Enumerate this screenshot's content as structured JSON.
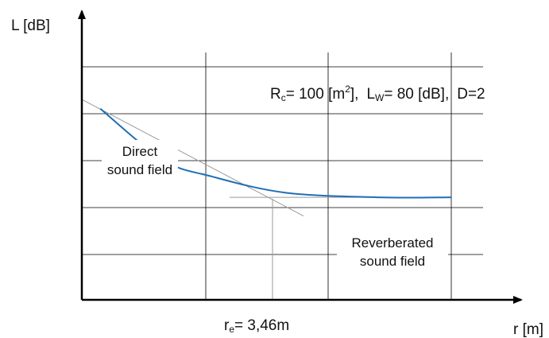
{
  "chart_data": {
    "type": "line",
    "title": "",
    "ylabel": "L [dB]",
    "xlabel": "r [m]",
    "parameters": {
      "R_symbol": "R",
      "R_sub": "c",
      "R_value": "= 100 [m",
      "R_sup": "2",
      "R_close": "],",
      "L_symbol": "L",
      "L_sub": "W",
      "L_value": "= 80 [dB],",
      "D_text": "D=2"
    },
    "annotations": {
      "direct_line1": "Direct",
      "direct_line2": "sound field",
      "reverb_line1": "Reverberated",
      "reverb_line2": "sound field"
    },
    "critical_radius": {
      "symbol": "r",
      "sub": "e",
      "value_text": "= 3,46m",
      "value": 3.46
    },
    "grid": true,
    "series": [
      {
        "values": [
          [
            0.05,
            0.82
          ],
          [
            0.22,
            0.6
          ],
          [
            0.35,
            0.53
          ],
          [
            0.55,
            0.46
          ],
          [
            0.8,
            0.44
          ],
          [
            1.0,
            0.44
          ]
        ],
        "color": "#1f6fb5"
      }
    ],
    "asymptotes": [
      {
        "values": [
          [
            0.0,
            0.86
          ],
          [
            0.6,
            0.36
          ]
        ],
        "color": "#9a9a9a"
      },
      {
        "values": [
          [
            0.4,
            0.44
          ],
          [
            1.0,
            0.44
          ]
        ],
        "color": "#9a9a9a"
      }
    ]
  }
}
